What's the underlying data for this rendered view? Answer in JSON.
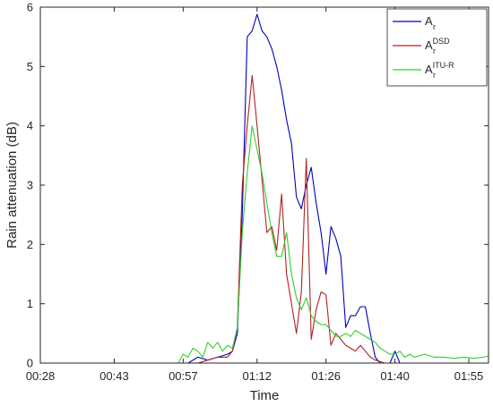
{
  "chart_data": {
    "type": "line",
    "title": "",
    "xlabel": "Time",
    "ylabel": "Rain attenuation (dB)",
    "xlim": [
      0,
      91
    ],
    "ylim": [
      0,
      6
    ],
    "x_ticks": [
      {
        "v": 0,
        "label": "00:28"
      },
      {
        "v": 15,
        "label": "00:43"
      },
      {
        "v": 29,
        "label": "00:57"
      },
      {
        "v": 44,
        "label": "01:12"
      },
      {
        "v": 58,
        "label": "01:26"
      },
      {
        "v": 72,
        "label": "01:40"
      },
      {
        "v": 87,
        "label": "01:55"
      }
    ],
    "y_ticks": [
      0,
      1,
      2,
      3,
      4,
      5,
      6
    ],
    "grid": false,
    "legend_position": "top-right",
    "series": [
      {
        "name": "A",
        "sub": "r",
        "sup": "",
        "color": "#0000c0",
        "points": [
          [
            0,
            0
          ],
          [
            30,
            0
          ],
          [
            32,
            0.1
          ],
          [
            34,
            0.05
          ],
          [
            36,
            0.1
          ],
          [
            38,
            0.15
          ],
          [
            39,
            0.2
          ],
          [
            40,
            0.5
          ],
          [
            41,
            2.5
          ],
          [
            42,
            5.5
          ],
          [
            43,
            5.6
          ],
          [
            44,
            5.88
          ],
          [
            45,
            5.6
          ],
          [
            46,
            5.5
          ],
          [
            47,
            5.3
          ],
          [
            48,
            5.0
          ],
          [
            49,
            4.6
          ],
          [
            50,
            4.1
          ],
          [
            51,
            3.7
          ],
          [
            52,
            2.8
          ],
          [
            53,
            2.6
          ],
          [
            54,
            3.0
          ],
          [
            55,
            3.3
          ],
          [
            56,
            2.7
          ],
          [
            57,
            2.2
          ],
          [
            58,
            1.5
          ],
          [
            59,
            2.3
          ],
          [
            60,
            2.1
          ],
          [
            61,
            1.8
          ],
          [
            62,
            0.6
          ],
          [
            63,
            0.8
          ],
          [
            64,
            0.8
          ],
          [
            65,
            0.95
          ],
          [
            66,
            0.95
          ],
          [
            67,
            0.5
          ],
          [
            68,
            0.1
          ],
          [
            69,
            0
          ],
          [
            71,
            0
          ],
          [
            72,
            0.2
          ],
          [
            73,
            0
          ],
          [
            91,
            0
          ]
        ]
      },
      {
        "name": "A",
        "sub": "r",
        "sup": "DSD",
        "color": "#b22222",
        "points": [
          [
            0,
            0
          ],
          [
            32,
            0
          ],
          [
            34,
            0.05
          ],
          [
            36,
            0.1
          ],
          [
            38,
            0.1
          ],
          [
            39,
            0.2
          ],
          [
            40,
            0.6
          ],
          [
            41,
            3.0
          ],
          [
            42,
            4.0
          ],
          [
            43,
            4.85
          ],
          [
            44,
            4.0
          ],
          [
            45,
            3.1
          ],
          [
            46,
            2.2
          ],
          [
            47,
            2.3
          ],
          [
            48,
            1.9
          ],
          [
            49,
            2.85
          ],
          [
            50,
            1.5
          ],
          [
            51,
            1.0
          ],
          [
            52,
            0.5
          ],
          [
            53,
            1.2
          ],
          [
            54,
            3.45
          ],
          [
            55,
            0.4
          ],
          [
            56,
            0.9
          ],
          [
            57,
            1.2
          ],
          [
            58,
            1.15
          ],
          [
            59,
            0.3
          ],
          [
            60,
            0.5
          ],
          [
            61,
            0.4
          ],
          [
            62,
            0.3
          ],
          [
            63,
            0.25
          ],
          [
            64,
            0.2
          ],
          [
            65,
            0.3
          ],
          [
            66,
            0.2
          ],
          [
            67,
            0.1
          ],
          [
            68,
            0.05
          ],
          [
            70,
            0
          ],
          [
            91,
            0
          ]
        ]
      },
      {
        "name": "A",
        "sub": "r",
        "sup": "ITU-R",
        "color": "#32cd32",
        "points": [
          [
            0,
            0
          ],
          [
            28,
            0
          ],
          [
            29,
            0.15
          ],
          [
            30,
            0.1
          ],
          [
            31,
            0.25
          ],
          [
            32,
            0.2
          ],
          [
            33,
            0.1
          ],
          [
            34,
            0.35
          ],
          [
            35,
            0.25
          ],
          [
            36,
            0.35
          ],
          [
            37,
            0.2
          ],
          [
            38,
            0.3
          ],
          [
            39,
            0.25
          ],
          [
            40,
            0.6
          ],
          [
            41,
            2.2
          ],
          [
            42,
            3.2
          ],
          [
            43,
            4.0
          ],
          [
            44,
            3.6
          ],
          [
            45,
            3.2
          ],
          [
            46,
            2.7
          ],
          [
            47,
            2.2
          ],
          [
            48,
            1.8
          ],
          [
            49,
            1.8
          ],
          [
            50,
            2.2
          ],
          [
            51,
            1.5
          ],
          [
            52,
            1.1
          ],
          [
            53,
            0.9
          ],
          [
            54,
            1.1
          ],
          [
            55,
            0.8
          ],
          [
            56,
            0.7
          ],
          [
            57,
            0.65
          ],
          [
            58,
            0.65
          ],
          [
            59,
            0.55
          ],
          [
            60,
            0.45
          ],
          [
            61,
            0.45
          ],
          [
            62,
            0.5
          ],
          [
            63,
            0.45
          ],
          [
            64,
            0.55
          ],
          [
            65,
            0.5
          ],
          [
            66,
            0.45
          ],
          [
            67,
            0.4
          ],
          [
            68,
            0.35
          ],
          [
            69,
            0.25
          ],
          [
            70,
            0.2
          ],
          [
            71,
            0.15
          ],
          [
            72,
            0.15
          ],
          [
            73,
            0.2
          ],
          [
            74,
            0.1
          ],
          [
            75,
            0.15
          ],
          [
            76,
            0.1
          ],
          [
            78,
            0.15
          ],
          [
            80,
            0.1
          ],
          [
            82,
            0.1
          ],
          [
            84,
            0.08
          ],
          [
            86,
            0.1
          ],
          [
            88,
            0.08
          ],
          [
            90,
            0.1
          ],
          [
            91,
            0.12
          ]
        ]
      }
    ]
  }
}
